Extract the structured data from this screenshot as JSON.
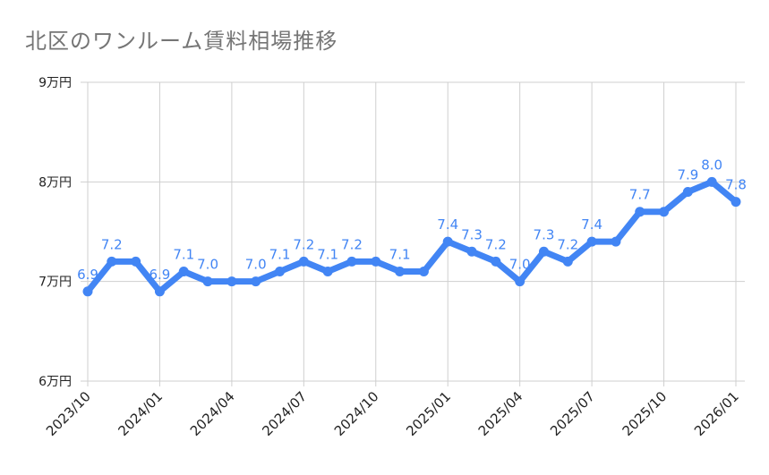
{
  "chart_data": {
    "type": "line",
    "title": "北区のワンルーム賃料相場推移",
    "xlabel": "",
    "ylabel": "",
    "x": [
      "2023/10",
      "2023/11",
      "2023/12",
      "2024/01",
      "2024/02",
      "2024/03",
      "2024/04",
      "2024/05",
      "2024/06",
      "2024/07",
      "2024/08",
      "2024/09",
      "2024/10",
      "2024/11",
      "2024/12",
      "2025/01",
      "2025/02",
      "2025/03",
      "2025/04",
      "2025/05",
      "2025/06",
      "2025/07",
      "2025/08",
      "2025/09",
      "2025/10",
      "2025/11",
      "2025/12",
      "2026/01"
    ],
    "series": [
      {
        "values": [
          6.9,
          7.2,
          7.2,
          6.9,
          7.1,
          7.0,
          7.0,
          7.0,
          7.1,
          7.2,
          7.1,
          7.2,
          7.2,
          7.1,
          7.1,
          7.4,
          7.3,
          7.2,
          7.0,
          7.3,
          7.2,
          7.4,
          7.4,
          7.7,
          7.7,
          7.9,
          8.0,
          7.8
        ],
        "data_labels": [
          "6.9",
          "7.2",
          null,
          "6.9",
          "7.1",
          "7.0",
          null,
          "7.0",
          "7.1",
          "7.2",
          "7.1",
          "7.2",
          null,
          "7.1",
          null,
          "7.4",
          "7.3",
          "7.2",
          "7.0",
          "7.3",
          "7.2",
          "7.4",
          null,
          "7.7",
          null,
          "7.9",
          "8.0",
          "7.8"
        ],
        "color": "#4285f4"
      }
    ],
    "xticks": [
      "2023/10",
      "2024/01",
      "2024/04",
      "2024/07",
      "2024/10",
      "2025/01",
      "2025/04",
      "2025/07",
      "2025/10",
      "2026/01"
    ],
    "yticks": [
      {
        "value": 6,
        "label": "6万円"
      },
      {
        "value": 7,
        "label": "7万円"
      },
      {
        "value": 8,
        "label": "8万円"
      },
      {
        "value": 9,
        "label": "9万円"
      }
    ],
    "ylim": [
      6,
      9
    ],
    "grid": true,
    "legend": "none"
  }
}
